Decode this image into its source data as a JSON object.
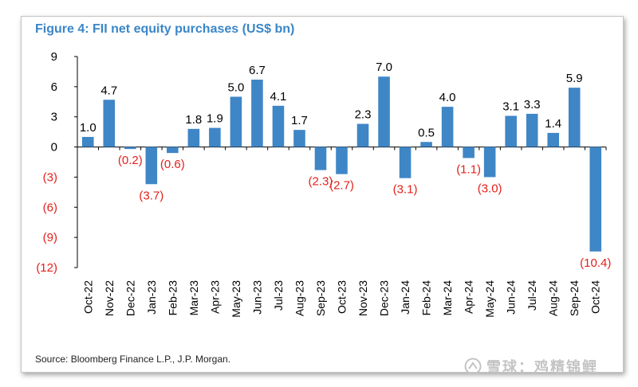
{
  "figure": {
    "title": "Figure 4: FII net equity purchases (US$ bn)",
    "source": "Source: Bloomberg Finance L.P., J.P. Morgan.",
    "watermark": "雪球：鸡精锦鲤"
  },
  "colors": {
    "bar": "#3f86c6",
    "positive_label": "#000000",
    "negative_label": "#e3201b",
    "title": "#3a86c8",
    "axis": "#000000"
  },
  "chart_data": {
    "type": "bar",
    "title": "Figure 4: FII net equity purchases (US$ bn)",
    "xlabel": "",
    "ylabel": "",
    "ylim": [
      -12,
      9
    ],
    "yticks": [
      9,
      6,
      3,
      0,
      -3,
      -6,
      -9,
      -12
    ],
    "ytick_labels": [
      "9",
      "6",
      "3",
      "0",
      "(3)",
      "(6)",
      "(9)",
      "(12)"
    ],
    "grid": false,
    "categories": [
      "Oct-22",
      "Nov-22",
      "Dec-22",
      "Jan-23",
      "Feb-23",
      "Mar-23",
      "Apr-23",
      "May-23",
      "Jun-23",
      "Jul-23",
      "Aug-23",
      "Sep-23",
      "Oct-23",
      "Nov-23",
      "Dec-23",
      "Jan-24",
      "Feb-24",
      "Mar-24",
      "Apr-24",
      "May-24",
      "Jun-24",
      "Jul-24",
      "Aug-24",
      "Sep-24",
      "Oct-24"
    ],
    "values": [
      1.0,
      4.7,
      -0.2,
      -3.7,
      -0.6,
      1.8,
      1.9,
      5.0,
      6.7,
      4.1,
      1.7,
      -2.3,
      -2.7,
      2.3,
      7.0,
      -3.1,
      0.5,
      4.0,
      -1.1,
      -3.0,
      3.1,
      3.3,
      1.4,
      5.9,
      -10.4
    ],
    "value_labels": [
      "1.0",
      "4.7",
      "(0.2)",
      "(3.7)",
      "(0.6)",
      "1.8",
      "1.9",
      "5.0",
      "6.7",
      "4.1",
      "1.7",
      "(2.3)",
      "(2.7)",
      "2.3",
      "7.0",
      "(3.1)",
      "0.5",
      "4.0",
      "(1.1)",
      "(3.0)",
      "3.1",
      "3.3",
      "1.4",
      "5.9",
      "(10.4)"
    ]
  }
}
